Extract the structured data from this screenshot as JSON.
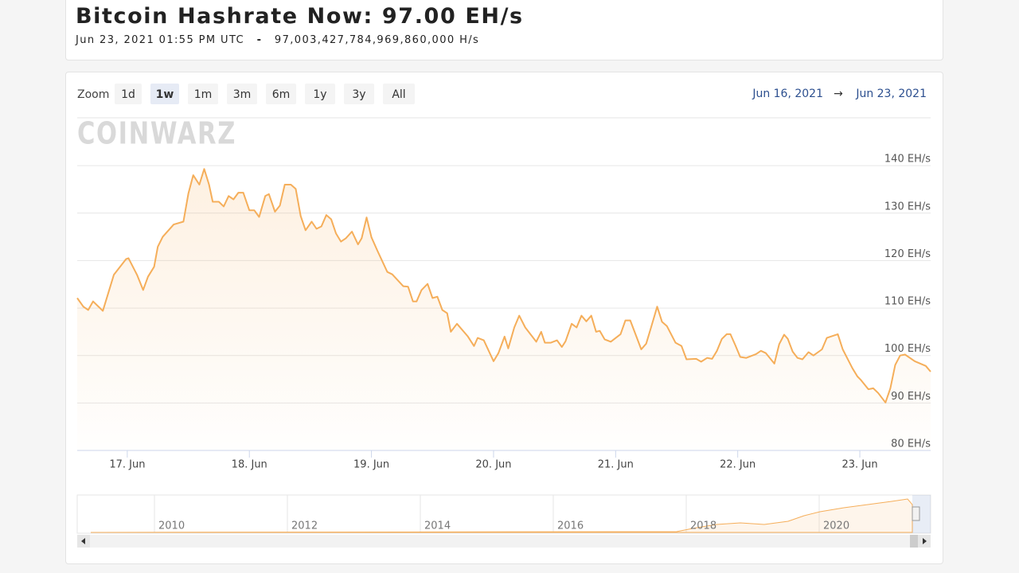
{
  "header": {
    "title": "Bitcoin Hashrate Now: 97.00 EH/s",
    "date": "Jun 23, 2021 01:55 PM UTC",
    "separator": "-",
    "hashrate": "97,003,427,784,969,860,000 H/s"
  },
  "range_selector": {
    "label": "Zoom",
    "buttons": [
      "1d",
      "1w",
      "1m",
      "3m",
      "6m",
      "1y",
      "3y",
      "All"
    ],
    "selected": 1
  },
  "date_range": {
    "from": "Jun 16, 2021",
    "arrow": "→",
    "to": "Jun 23, 2021"
  },
  "watermark": "COINWARZ",
  "chart_data": {
    "type": "line",
    "color": "#f5ae5a",
    "x": [
      0.59,
      0.64,
      0.68,
      0.72,
      0.8,
      0.89,
      0.99,
      1.01,
      1.08,
      1.13,
      1.17,
      1.22,
      1.25,
      1.29,
      1.38,
      1.46,
      1.5,
      1.54,
      1.59,
      1.63,
      1.67,
      1.7,
      1.75,
      1.79,
      1.83,
      1.87,
      1.91,
      1.95,
      2.0,
      2.04,
      2.08,
      2.13,
      2.16,
      2.21,
      2.25,
      2.29,
      2.34,
      2.38,
      2.42,
      2.46,
      2.51,
      2.55,
      2.59,
      2.63,
      2.67,
      2.71,
      2.75,
      2.79,
      2.84,
      2.89,
      2.92,
      2.96,
      3.0,
      3.05,
      3.13,
      3.17,
      3.26,
      3.3,
      3.34,
      3.37,
      3.41,
      3.46,
      3.5,
      3.54,
      3.58,
      3.62,
      3.65,
      3.7,
      3.79,
      3.84,
      3.87,
      3.92,
      4.0,
      4.04,
      4.09,
      4.12,
      4.17,
      4.21,
      4.26,
      4.35,
      4.39,
      4.42,
      4.47,
      4.52,
      4.56,
      4.59,
      4.64,
      4.68,
      4.72,
      4.76,
      4.8,
      4.84,
      4.87,
      4.91,
      4.96,
      5.04,
      5.08,
      5.12,
      5.17,
      5.21,
      5.25,
      5.29,
      5.34,
      5.38,
      5.42,
      5.49,
      5.54,
      5.58,
      5.66,
      5.7,
      5.75,
      5.79,
      5.83,
      5.87,
      5.91,
      5.94,
      5.98,
      6.02,
      6.07,
      6.15,
      6.19,
      6.23,
      6.3,
      6.34,
      6.38,
      6.41,
      6.45,
      6.49,
      6.53,
      6.58,
      6.62,
      6.69,
      6.73,
      6.82,
      6.86,
      6.9,
      6.94,
      6.98,
      7.01,
      7.07,
      7.11,
      7.15,
      7.21,
      7.25,
      7.29,
      7.33,
      7.37,
      7.45,
      7.54,
      7.58
    ],
    "values": [
      112.1,
      110.3,
      109.6,
      111.4,
      109.4,
      117.0,
      120.3,
      120.5,
      117.0,
      113.8,
      116.6,
      118.7,
      122.9,
      125.0,
      127.6,
      128.2,
      134.1,
      138.0,
      136.0,
      139.3,
      136.0,
      132.4,
      132.4,
      131.4,
      133.6,
      132.9,
      134.3,
      134.3,
      130.6,
      130.6,
      129.2,
      133.6,
      134.0,
      130.3,
      131.6,
      136.0,
      136.0,
      135.1,
      129.4,
      126.4,
      128.2,
      126.7,
      127.2,
      129.6,
      128.7,
      125.7,
      124.0,
      124.7,
      126.1,
      123.4,
      124.7,
      129.1,
      124.9,
      122.0,
      117.6,
      117.1,
      114.6,
      114.5,
      111.4,
      111.4,
      113.8,
      115.1,
      112.1,
      112.4,
      109.6,
      108.9,
      105.0,
      106.7,
      104.0,
      102.0,
      103.7,
      103.2,
      98.8,
      100.5,
      104.0,
      101.5,
      105.9,
      108.4,
      105.9,
      102.9,
      105.0,
      102.7,
      102.7,
      103.2,
      101.8,
      103.0,
      106.7,
      105.9,
      108.4,
      107.2,
      108.4,
      105.0,
      105.2,
      103.4,
      102.9,
      104.5,
      107.4,
      107.4,
      104.0,
      101.3,
      102.5,
      105.9,
      110.3,
      107.1,
      106.2,
      102.7,
      102.0,
      99.2,
      99.3,
      98.7,
      99.5,
      99.3,
      101.0,
      103.5,
      104.5,
      104.5,
      102.2,
      99.7,
      99.5,
      100.3,
      101.0,
      100.5,
      98.3,
      102.4,
      104.4,
      103.5,
      100.8,
      99.5,
      99.2,
      100.7,
      100.0,
      101.3,
      103.7,
      104.5,
      101.3,
      99.3,
      97.3,
      95.6,
      94.8,
      92.9,
      93.1,
      92.1,
      90.1,
      93.1,
      98.0,
      100.0,
      100.2,
      98.8,
      97.8,
      96.6
    ],
    "xlim": [
      0.59,
      7.58
    ],
    "xticks": [
      {
        "value": 1,
        "label": "17. Jun"
      },
      {
        "value": 2,
        "label": "18. Jun"
      },
      {
        "value": 3,
        "label": "19. Jun"
      },
      {
        "value": 4,
        "label": "20. Jun"
      },
      {
        "value": 5,
        "label": "21. Jun"
      },
      {
        "value": 6,
        "label": "22. Jun"
      },
      {
        "value": 7,
        "label": "23. Jun"
      }
    ],
    "ylim": [
      80,
      150
    ],
    "yticks": [
      {
        "value": 80,
        "label": "80 EH/s"
      },
      {
        "value": 90,
        "label": "90 EH/s"
      },
      {
        "value": 100,
        "label": "100 EH/s"
      },
      {
        "value": 110,
        "label": "110 EH/s"
      },
      {
        "value": 120,
        "label": "120 EH/s"
      },
      {
        "value": 130,
        "label": "130 EH/s"
      },
      {
        "value": 140,
        "label": "140 EH/s"
      }
    ],
    "grid": true
  },
  "navigator": {
    "labels": [
      "2010",
      "2012",
      "2014",
      "2016",
      "2018",
      "2020"
    ]
  }
}
